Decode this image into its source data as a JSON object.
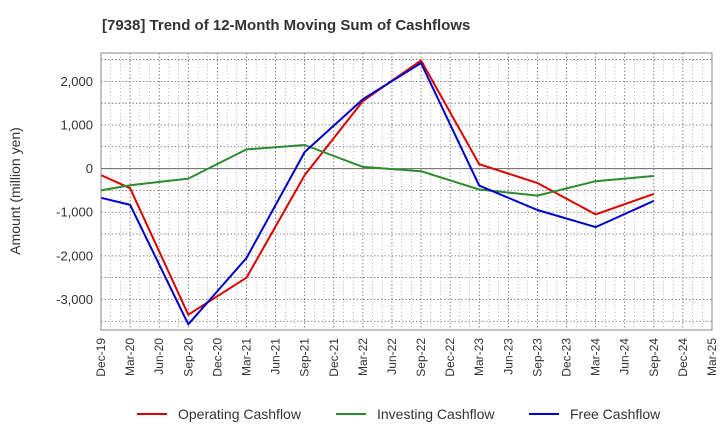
{
  "chart_data": {
    "type": "line",
    "title": "[7938]  Trend of 12-Month Moving Sum of Cashflows",
    "ylabel": "Amount (million yen)",
    "xlabel": "",
    "categories": [
      "Dec-19",
      "Mar-20",
      "Jun-20",
      "Sep-20",
      "Dec-20",
      "Mar-21",
      "Jun-21",
      "Sep-21",
      "Dec-21",
      "Mar-22",
      "Jun-22",
      "Sep-22",
      "Dec-22",
      "Mar-23",
      "Jun-23",
      "Sep-23",
      "Dec-23",
      "Mar-24",
      "Jun-24",
      "Sep-24",
      "Dec-24",
      "Mar-25"
    ],
    "yticks": [
      -3000,
      -2000,
      -1000,
      0,
      1000,
      2000
    ],
    "ytick_labels": [
      "-3,000",
      "-2,000",
      "-1,000",
      "0",
      "1,000",
      "2,000"
    ],
    "ylim": [
      -3700,
      2650
    ],
    "grid": true,
    "legend_position": "bottom",
    "series": [
      {
        "name": "Operating Cashflow",
        "color": "#dd0000",
        "values": [
          -150,
          -450,
          null,
          -3350,
          null,
          -2500,
          null,
          -150,
          null,
          1550,
          null,
          2480,
          null,
          100,
          null,
          -330,
          null,
          -1050,
          null,
          -580,
          null,
          null
        ]
      },
      {
        "name": "Investing Cashflow",
        "color": "#2e8b2e",
        "values": [
          -500,
          -380,
          null,
          -230,
          null,
          440,
          null,
          540,
          null,
          40,
          null,
          -60,
          null,
          -480,
          null,
          -620,
          null,
          -290,
          null,
          -170,
          null,
          null
        ]
      },
      {
        "name": "Free Cashflow",
        "color": "#0000cc",
        "values": [
          -670,
          -830,
          null,
          -3570,
          null,
          -2050,
          null,
          380,
          null,
          1590,
          null,
          2420,
          null,
          -390,
          null,
          -950,
          null,
          -1340,
          null,
          -740,
          null,
          null
        ]
      }
    ]
  }
}
